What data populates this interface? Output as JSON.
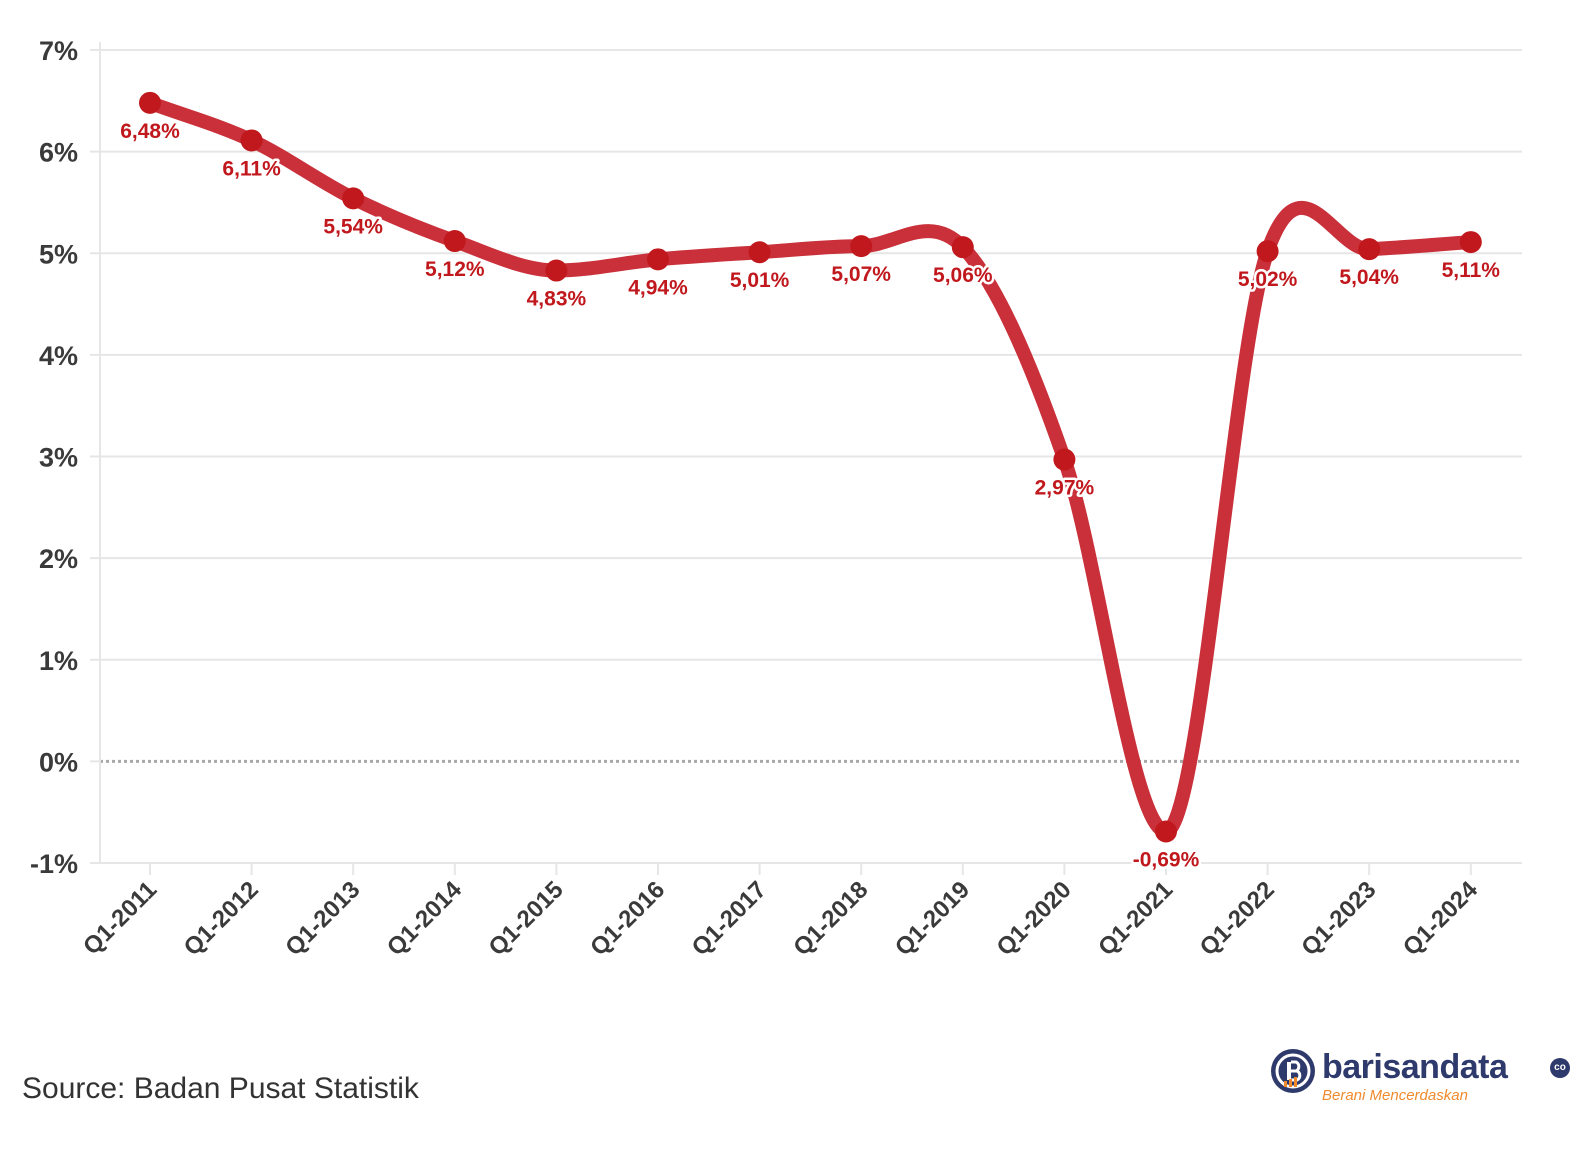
{
  "chart_data": {
    "type": "line",
    "categories": [
      "Q1-2011",
      "Q1-2012",
      "Q1-2013",
      "Q1-2014",
      "Q1-2015",
      "Q1-2016",
      "Q1-2017",
      "Q1-2018",
      "Q1-2019",
      "Q1-2020",
      "Q1-2021",
      "Q1-2022",
      "Q1-2023",
      "Q1-2024"
    ],
    "series": [
      {
        "values": [
          6.48,
          6.11,
          5.54,
          5.12,
          4.83,
          4.94,
          5.01,
          5.07,
          5.06,
          2.97,
          -0.69,
          5.02,
          5.04,
          5.11
        ]
      }
    ],
    "data_labels": [
      "6,48%",
      "6,11%",
      "5,54%",
      "5,12%",
      "4,83%",
      "4,94%",
      "5,01%",
      "5,07%",
      "5,06%",
      "2,97%",
      "-0,69%",
      "5,02%",
      "5,04%",
      "5,11%"
    ],
    "y_ticks": [
      7,
      6,
      5,
      4,
      3,
      2,
      1,
      0,
      -1
    ],
    "y_tick_labels": [
      "7%",
      "6%",
      "5%",
      "4%",
      "3%",
      "2%",
      "1%",
      "0%",
      "-1%"
    ],
    "ylim": [
      -1,
      7
    ],
    "grid": true,
    "zero_line": "dotted",
    "title": "",
    "xlabel": "",
    "ylabel": "",
    "line_color": "#c9303a",
    "label_color": "#c0181d"
  },
  "footer": {
    "source": "Source: Badan Pusat Statistik",
    "brand_name": "barisandata",
    "brand_suffix": "co",
    "brand_tagline": "Berani Mencerdaskan",
    "brand_color": "#2e3a6b",
    "tagline_color": "#f08a2c"
  }
}
